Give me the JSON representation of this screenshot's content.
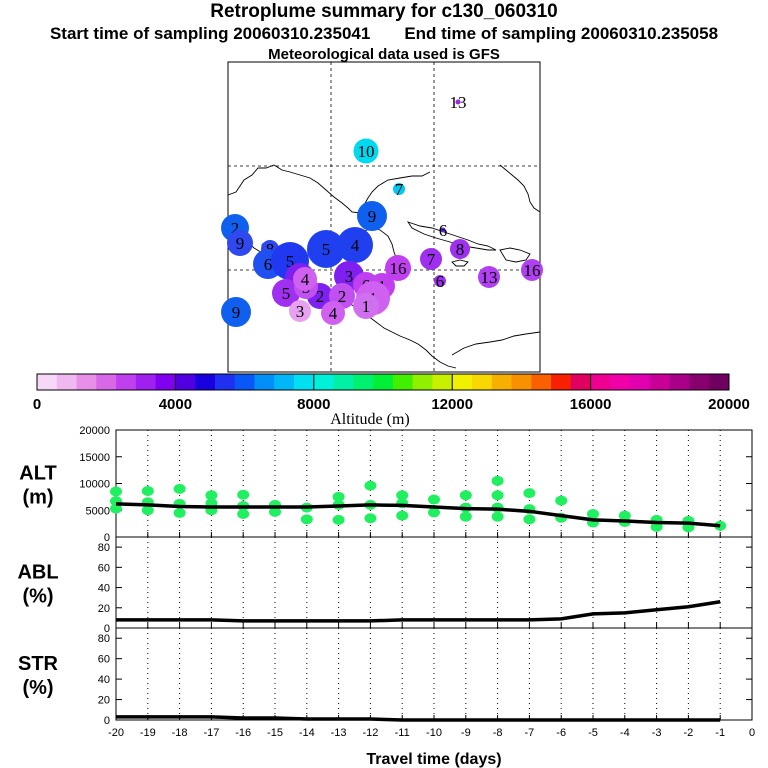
{
  "header": {
    "title": "Retroplume summary for c130_060310",
    "start_label": "Start time of sampling 20060310.235041",
    "end_label": "End time of sampling 20060310.235058",
    "met_label": "Meteorological data used is GFS"
  },
  "colorbar": {
    "label": "Altitude (m)",
    "ticks": [
      "0",
      "4000",
      "8000",
      "12000",
      "16000",
      "20000"
    ],
    "colors": [
      "#f8d8f8",
      "#f0b8f0",
      "#e890e8",
      "#d868e8",
      "#c040f0",
      "#a020f0",
      "#8000f0",
      "#5000e0",
      "#1800e0",
      "#2030f0",
      "#0858f8",
      "#0090f8",
      "#00b8f8",
      "#00e0f0",
      "#00f0d8",
      "#00f0a8",
      "#00f070",
      "#00f038",
      "#40f000",
      "#90f000",
      "#c8f000",
      "#f0f000",
      "#f8d800",
      "#f8b000",
      "#f89000",
      "#f86000",
      "#f82000",
      "#e00060",
      "#f00090",
      "#f000a8",
      "#e000b0",
      "#c80098",
      "#a80088",
      "#880070",
      "#700060"
    ]
  },
  "map": {
    "markers": [
      {
        "label": "13",
        "color": "#a020f0",
        "size": 5
      },
      {
        "label": "10",
        "color": "#00d8f0",
        "size": 25
      },
      {
        "label": "7",
        "color": "#00c8f0",
        "size": 12
      },
      {
        "label": "9",
        "color": "#1060f0",
        "size": 30
      },
      {
        "label": "6",
        "color": "#6020e0",
        "size": 5
      },
      {
        "label": "8",
        "color": "#a030f0",
        "size": 20
      },
      {
        "label": "7",
        "color": "#a030f0",
        "size": 22
      },
      {
        "label": "6",
        "color": "#a030f0",
        "size": 12
      },
      {
        "label": "13",
        "color": "#b040f0",
        "size": 22
      },
      {
        "label": "16",
        "color": "#b040f0",
        "size": 22
      },
      {
        "label": "2",
        "color": "#1060f0",
        "size": 28
      },
      {
        "label": "9",
        "color": "#3048f0",
        "size": 26
      },
      {
        "label": "8",
        "color": "#3048f0",
        "size": 18
      },
      {
        "label": "6",
        "color": "#2050f0",
        "size": 30
      },
      {
        "label": "5",
        "color": "#2038f0",
        "size": 38
      },
      {
        "label": "5",
        "color": "#2040f0",
        "size": 38
      },
      {
        "label": "4",
        "color": "#2040f0",
        "size": 36
      },
      {
        "label": "3",
        "color": "#8020f0",
        "size": 30
      },
      {
        "label": "3",
        "color": "#8020f0",
        "size": 30
      },
      {
        "label": "2",
        "color": "#8020f0",
        "size": 26
      },
      {
        "label": "1",
        "color": "#c040f0",
        "size": 26
      },
      {
        "label": "6",
        "color": "#c040f0",
        "size": 26
      },
      {
        "label": "16",
        "color": "#c040f0",
        "size": 26
      },
      {
        "label": "5",
        "color": "#a030f0",
        "size": 28
      },
      {
        "label": "5",
        "color": "#c050f0",
        "size": 24
      },
      {
        "label": "2",
        "color": "#c050f0",
        "size": 26
      },
      {
        "label": "1",
        "color": "#d060f0",
        "size": 34
      },
      {
        "label": "4",
        "color": "#d060f0",
        "size": 24
      },
      {
        "label": "4",
        "color": "#d060f0",
        "size": 24
      },
      {
        "label": "1",
        "color": "#d070f0",
        "size": 26
      },
      {
        "label": "3",
        "color": "#e8a0f0",
        "size": 22
      },
      {
        "label": "9",
        "color": "#1060f0",
        "size": 30
      }
    ]
  },
  "chart_data": [
    {
      "type": "scatter",
      "name": "ALT",
      "ylabel": "ALT (m)",
      "ylim": [
        0,
        20000
      ],
      "yticks": [
        "0",
        "5000",
        "10000",
        "15000",
        "20000"
      ],
      "xlim": [
        -20,
        0
      ],
      "median_line": {
        "x": [
          -20,
          -19,
          -18,
          -17,
          -16,
          -15,
          -14,
          -13,
          -12,
          -11,
          -10,
          -9,
          -8,
          -7,
          -6,
          -5,
          -4,
          -3,
          -2,
          -1
        ],
        "y": [
          6200,
          6000,
          5700,
          5600,
          5600,
          5600,
          5600,
          5800,
          6000,
          5900,
          5600,
          5300,
          5200,
          4800,
          4000,
          3200,
          3000,
          2700,
          2600,
          2100
        ]
      },
      "points": [
        {
          "x": -20,
          "y": 5300
        },
        {
          "x": -20,
          "y": 6700
        },
        {
          "x": -20,
          "y": 8500
        },
        {
          "x": -19,
          "y": 5000
        },
        {
          "x": -19,
          "y": 6500
        },
        {
          "x": -19,
          "y": 8600
        },
        {
          "x": -18,
          "y": 4500
        },
        {
          "x": -18,
          "y": 6200
        },
        {
          "x": -18,
          "y": 9000
        },
        {
          "x": -17,
          "y": 5000
        },
        {
          "x": -17,
          "y": 6300
        },
        {
          "x": -17,
          "y": 7800
        },
        {
          "x": -16,
          "y": 4300
        },
        {
          "x": -16,
          "y": 5800
        },
        {
          "x": -16,
          "y": 7900
        },
        {
          "x": -15,
          "y": 4700
        },
        {
          "x": -15,
          "y": 6000
        },
        {
          "x": -14,
          "y": 3300
        },
        {
          "x": -14,
          "y": 5500
        },
        {
          "x": -13,
          "y": 3200
        },
        {
          "x": -13,
          "y": 6000
        },
        {
          "x": -13,
          "y": 7500
        },
        {
          "x": -12,
          "y": 3500
        },
        {
          "x": -12,
          "y": 6000
        },
        {
          "x": -12,
          "y": 9600
        },
        {
          "x": -11,
          "y": 4000
        },
        {
          "x": -11,
          "y": 6300
        },
        {
          "x": -11,
          "y": 7800
        },
        {
          "x": -10,
          "y": 4600
        },
        {
          "x": -10,
          "y": 7000
        },
        {
          "x": -9,
          "y": 3800
        },
        {
          "x": -9,
          "y": 5500
        },
        {
          "x": -9,
          "y": 7800
        },
        {
          "x": -8,
          "y": 3800
        },
        {
          "x": -8,
          "y": 5500
        },
        {
          "x": -8,
          "y": 7800
        },
        {
          "x": -8,
          "y": 10500
        },
        {
          "x": -7,
          "y": 3300
        },
        {
          "x": -7,
          "y": 5200
        },
        {
          "x": -7,
          "y": 8200
        },
        {
          "x": -6,
          "y": 3600
        },
        {
          "x": -6,
          "y": 6800
        },
        {
          "x": -5,
          "y": 2700
        },
        {
          "x": -5,
          "y": 4300
        },
        {
          "x": -4,
          "y": 2800
        },
        {
          "x": -4,
          "y": 4000
        },
        {
          "x": -3,
          "y": 1900
        },
        {
          "x": -3,
          "y": 3200
        },
        {
          "x": -2,
          "y": 1800
        },
        {
          "x": -2,
          "y": 3000
        },
        {
          "x": -1,
          "y": 2100
        }
      ]
    },
    {
      "type": "line",
      "name": "ABL",
      "ylabel": "ABL (%)",
      "ylim": [
        0,
        90
      ],
      "yticks": [
        "0",
        "20",
        "40",
        "60",
        "80"
      ],
      "xlim": [
        -20,
        0
      ],
      "x": [
        -20,
        -19,
        -18,
        -17,
        -16,
        -15,
        -14,
        -13,
        -12,
        -11,
        -10,
        -9,
        -8,
        -7,
        -6,
        -5,
        -4,
        -3,
        -2,
        -1
      ],
      "y": [
        8,
        8,
        8,
        8,
        7,
        7,
        7,
        7,
        7,
        8,
        8,
        8,
        8,
        8,
        9,
        14,
        15,
        18,
        21,
        26
      ]
    },
    {
      "type": "line",
      "name": "STR",
      "ylabel": "STR (%)",
      "ylim": [
        0,
        90
      ],
      "yticks": [
        "0",
        "20",
        "40",
        "60",
        "80"
      ],
      "xlim": [
        -20,
        0
      ],
      "xlabel": "Travel time (days)",
      "xticks": [
        "-20",
        "-19",
        "-18",
        "-17",
        "-16",
        "-15",
        "-14",
        "-13",
        "-12",
        "-11",
        "-10",
        "-9",
        "-8",
        "-7",
        "-6",
        "-5",
        "-4",
        "-3",
        "-2",
        "-1",
        "0"
      ],
      "x": [
        -20,
        -19,
        -18,
        -17,
        -16,
        -15,
        -14,
        -13,
        -12,
        -11,
        -10,
        -9,
        -8,
        -7,
        -6,
        -5,
        -4,
        -3,
        -2,
        -1
      ],
      "y": [
        3,
        3,
        3,
        3,
        2,
        2,
        1,
        1,
        1,
        0,
        0,
        0,
        0,
        0,
        0,
        0,
        0,
        0,
        0,
        0
      ]
    }
  ]
}
